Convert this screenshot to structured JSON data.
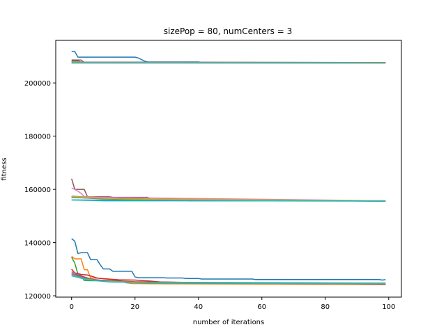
{
  "chart_data": {
    "type": "line",
    "title": "sizePop = 80, numCenters = 3",
    "xlabel": "number of iterations",
    "ylabel": "fitness",
    "xlim": [
      -5,
      104
    ],
    "ylim": [
      119500,
      216000
    ],
    "xticks": [
      0,
      20,
      40,
      60,
      80,
      100
    ],
    "yticks": [
      120000,
      140000,
      160000,
      180000,
      200000
    ],
    "grid": false,
    "legend": "none",
    "series": [
      {
        "color": "#1f77b4",
        "points": [
          [
            0,
            211800
          ],
          [
            1,
            211800
          ],
          [
            2,
            209700
          ],
          [
            20,
            209700
          ],
          [
            21,
            209400
          ],
          [
            23,
            208200
          ],
          [
            24,
            207900
          ],
          [
            40,
            207900
          ],
          [
            41,
            207700
          ],
          [
            99,
            207600
          ]
        ]
      },
      {
        "color": "#ff7f0e",
        "points": [
          [
            0,
            207800
          ],
          [
            99,
            207700
          ]
        ]
      },
      {
        "color": "#2ca02c",
        "points": [
          [
            0,
            208300
          ],
          [
            2,
            208300
          ],
          [
            3,
            207800
          ],
          [
            99,
            207700
          ]
        ]
      },
      {
        "color": "#d62728",
        "points": [
          [
            0,
            207500
          ],
          [
            99,
            207500
          ]
        ]
      },
      {
        "color": "#9467bd",
        "points": [
          [
            0,
            207800
          ],
          [
            99,
            207700
          ]
        ]
      },
      {
        "color": "#8c564b",
        "points": [
          [
            0,
            208600
          ],
          [
            3,
            208600
          ],
          [
            4,
            207700
          ],
          [
            99,
            207700
          ]
        ]
      },
      {
        "color": "#e377c2",
        "points": [
          [
            0,
            207900
          ],
          [
            3,
            207900
          ],
          [
            4,
            207500
          ],
          [
            99,
            207500
          ]
        ]
      },
      {
        "color": "#7f7f7f",
        "points": [
          [
            0,
            207800
          ],
          [
            99,
            207600
          ]
        ]
      },
      {
        "color": "#bcbd22",
        "points": [
          [
            0,
            207700
          ],
          [
            99,
            207600
          ]
        ]
      },
      {
        "color": "#17becf",
        "points": [
          [
            0,
            207600
          ],
          [
            99,
            207500
          ]
        ]
      },
      {
        "color": "#1f77b4",
        "points": [
          [
            0,
            156000
          ],
          [
            99,
            155600
          ]
        ]
      },
      {
        "color": "#ff7f0e",
        "points": [
          [
            0,
            157300
          ],
          [
            5,
            157000
          ],
          [
            10,
            156800
          ],
          [
            20,
            156400
          ],
          [
            30,
            155900
          ],
          [
            99,
            155600
          ]
        ]
      },
      {
        "color": "#2ca02c",
        "points": [
          [
            0,
            157500
          ],
          [
            5,
            157000
          ],
          [
            10,
            156500
          ],
          [
            20,
            156000
          ],
          [
            99,
            155600
          ]
        ]
      },
      {
        "color": "#d62728",
        "points": [
          [
            0,
            157000
          ],
          [
            8,
            156800
          ],
          [
            20,
            156500
          ],
          [
            30,
            156000
          ],
          [
            99,
            155700
          ]
        ]
      },
      {
        "color": "#9467bd",
        "points": [
          [
            0,
            157000
          ],
          [
            10,
            156500
          ],
          [
            99,
            155700
          ]
        ]
      },
      {
        "color": "#8c564b",
        "points": [
          [
            0,
            164000
          ],
          [
            1,
            160000
          ],
          [
            4,
            160000
          ],
          [
            5,
            157200
          ],
          [
            12,
            157200
          ],
          [
            13,
            157000
          ],
          [
            24,
            157000
          ],
          [
            25,
            156000
          ],
          [
            36,
            156000
          ],
          [
            37,
            155700
          ],
          [
            99,
            155600
          ]
        ]
      },
      {
        "color": "#e377c2",
        "points": [
          [
            0,
            160500
          ],
          [
            1,
            160000
          ],
          [
            2,
            159300
          ],
          [
            3,
            158500
          ],
          [
            4,
            157300
          ],
          [
            8,
            157000
          ],
          [
            99,
            155700
          ]
        ]
      },
      {
        "color": "#7f7f7f",
        "points": [
          [
            0,
            157000
          ],
          [
            10,
            156400
          ],
          [
            99,
            155600
          ]
        ]
      },
      {
        "color": "#bcbd22",
        "points": [
          [
            0,
            157400
          ],
          [
            5,
            156900
          ],
          [
            15,
            156400
          ],
          [
            99,
            155700
          ]
        ]
      },
      {
        "color": "#17becf",
        "points": [
          [
            0,
            156000
          ],
          [
            10,
            155700
          ],
          [
            99,
            155600
          ]
        ]
      },
      {
        "color": "#1f77b4",
        "points": [
          [
            0,
            141500
          ],
          [
            1,
            140500
          ],
          [
            2,
            135900
          ],
          [
            3,
            136200
          ],
          [
            5,
            136200
          ],
          [
            6,
            133600
          ],
          [
            8,
            133600
          ],
          [
            9,
            131700
          ],
          [
            10,
            130100
          ],
          [
            12,
            130100
          ],
          [
            13,
            129200
          ],
          [
            19,
            129200
          ],
          [
            20,
            127100
          ],
          [
            21,
            126800
          ],
          [
            29,
            126800
          ],
          [
            30,
            126700
          ],
          [
            35,
            126700
          ],
          [
            36,
            126500
          ],
          [
            40,
            126500
          ],
          [
            41,
            126300
          ],
          [
            57,
            126300
          ],
          [
            58,
            126100
          ],
          [
            97,
            126100
          ],
          [
            98,
            125900
          ],
          [
            99,
            126100
          ]
        ]
      },
      {
        "color": "#ff7f0e",
        "points": [
          [
            0,
            134800
          ],
          [
            1,
            133900
          ],
          [
            3,
            133900
          ],
          [
            4,
            129800
          ],
          [
            5,
            129800
          ],
          [
            6,
            126700
          ],
          [
            10,
            126500
          ],
          [
            15,
            125900
          ],
          [
            17,
            124900
          ],
          [
            19,
            124600
          ],
          [
            30,
            124500
          ],
          [
            60,
            124400
          ],
          [
            99,
            124200
          ]
        ]
      },
      {
        "color": "#2ca02c",
        "points": [
          [
            0,
            134500
          ],
          [
            1,
            132300
          ],
          [
            2,
            128100
          ],
          [
            3,
            127600
          ],
          [
            4,
            125700
          ],
          [
            10,
            125600
          ],
          [
            15,
            125300
          ],
          [
            20,
            125000
          ],
          [
            25,
            124800
          ],
          [
            99,
            124500
          ]
        ]
      },
      {
        "color": "#d62728",
        "points": [
          [
            0,
            130000
          ],
          [
            1,
            128600
          ],
          [
            2,
            128400
          ],
          [
            3,
            128000
          ],
          [
            5,
            127800
          ],
          [
            8,
            126700
          ],
          [
            10,
            126400
          ],
          [
            15,
            126000
          ],
          [
            20,
            125900
          ],
          [
            25,
            125500
          ],
          [
            28,
            125200
          ],
          [
            40,
            124900
          ],
          [
            50,
            124800
          ],
          [
            70,
            124600
          ],
          [
            90,
            124500
          ],
          [
            99,
            124300
          ]
        ]
      },
      {
        "color": "#9467bd",
        "points": [
          [
            0,
            129000
          ],
          [
            3,
            127500
          ],
          [
            6,
            126300
          ],
          [
            12,
            125400
          ],
          [
            20,
            125100
          ],
          [
            30,
            124900
          ],
          [
            99,
            124600
          ]
        ]
      },
      {
        "color": "#8c564b",
        "points": [
          [
            0,
            128400
          ],
          [
            3,
            127300
          ],
          [
            7,
            126000
          ],
          [
            12,
            125700
          ],
          [
            20,
            125300
          ],
          [
            40,
            125000
          ],
          [
            99,
            124700
          ]
        ]
      },
      {
        "color": "#e377c2",
        "points": [
          [
            0,
            128200
          ],
          [
            3,
            126900
          ],
          [
            7,
            125800
          ],
          [
            14,
            125300
          ],
          [
            25,
            125000
          ],
          [
            99,
            124600
          ]
        ]
      },
      {
        "color": "#7f7f7f",
        "points": [
          [
            0,
            128000
          ],
          [
            4,
            126500
          ],
          [
            10,
            125500
          ],
          [
            20,
            125100
          ],
          [
            99,
            124800
          ]
        ]
      },
      {
        "color": "#bcbd22",
        "points": [
          [
            0,
            127700
          ],
          [
            4,
            126300
          ],
          [
            10,
            125400
          ],
          [
            25,
            124900
          ],
          [
            99,
            124600
          ]
        ]
      },
      {
        "color": "#17becf",
        "points": [
          [
            0,
            127500
          ],
          [
            5,
            126000
          ],
          [
            12,
            125200
          ],
          [
            30,
            124800
          ],
          [
            99,
            124500
          ]
        ]
      }
    ]
  }
}
